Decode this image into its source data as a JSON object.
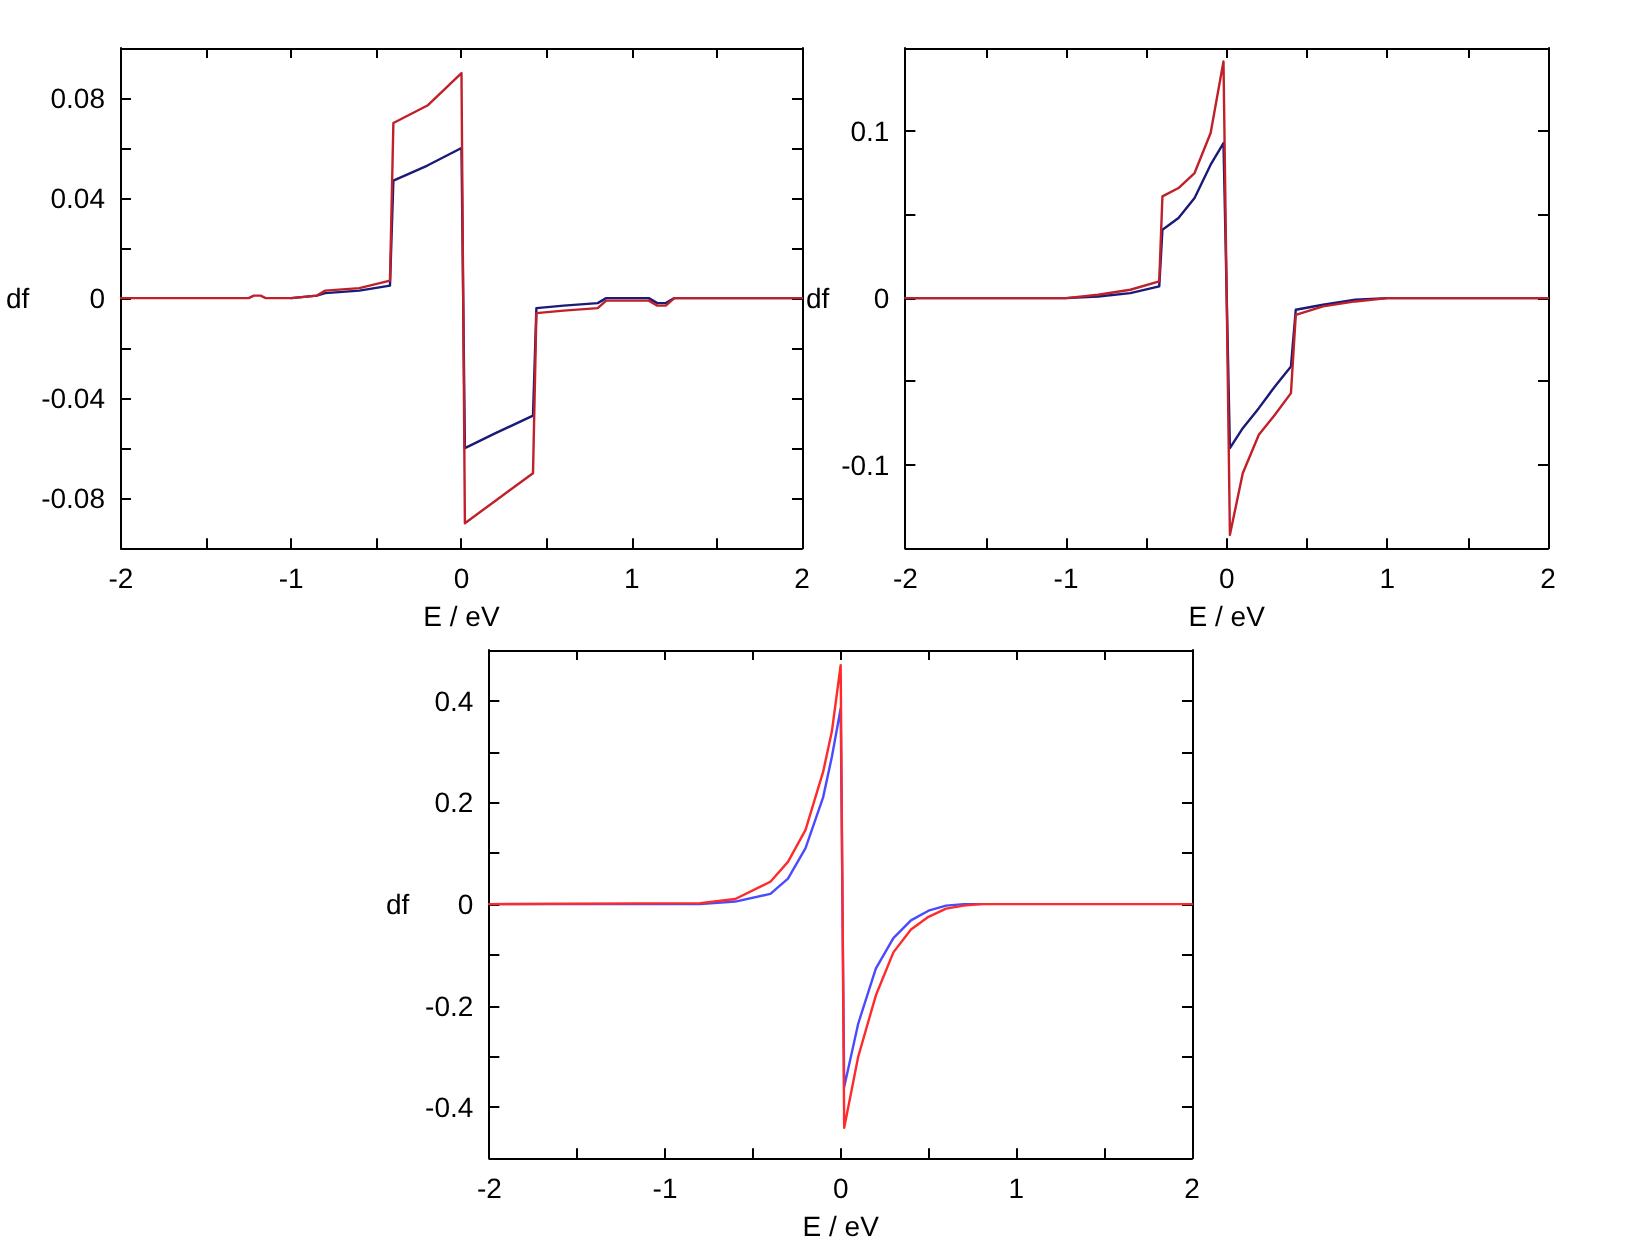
{
  "chart_data": [
    {
      "type": "line",
      "xlabel": "E / eV",
      "ylabel": "df",
      "xlim": [
        -2,
        2
      ],
      "ylim": [
        -0.1,
        0.1
      ],
      "marker": "none",
      "line_style": "solid",
      "grid": false,
      "xticks": [
        -2,
        {
          "value": -1.5,
          "label": null
        },
        -1,
        {
          "value": -0.5,
          "label": null
        },
        0,
        {
          "value": 0.5,
          "label": null
        },
        1,
        {
          "value": 1.5,
          "label": null
        },
        2
      ],
      "yticks": [
        {
          "value": -0.1,
          "label": null
        },
        -0.08,
        {
          "value": -0.06,
          "label": null
        },
        -0.04,
        {
          "value": -0.02,
          "label": null
        },
        0,
        {
          "value": 0.02,
          "label": null
        },
        0.04,
        {
          "value": 0.06,
          "label": null
        },
        0.08,
        {
          "value": 0.1,
          "label": null
        }
      ],
      "series": [
        {
          "color": "#1a1a78",
          "x": [
            -1.0,
            -0.85,
            -0.8,
            -0.6,
            -0.42,
            -0.4,
            -0.2,
            0,
            0.02,
            0.2,
            0.42,
            0.44,
            0.6,
            0.8,
            0.85,
            1.1,
            1.15,
            1.2,
            1.25,
            2
          ],
          "values": [
            0,
            0.001,
            0.002,
            0.003,
            0.005,
            0.047,
            0.053,
            0.06,
            -0.06,
            -0.054,
            -0.047,
            -0.004,
            -0.003,
            -0.002,
            0,
            0,
            -0.002,
            -0.002,
            0,
            0
          ]
        },
        {
          "color": "#c0202a",
          "x": [
            -2,
            -1.25,
            -1.22,
            -1.18,
            -1.15,
            -1.0,
            -0.85,
            -0.8,
            -0.6,
            -0.42,
            -0.4,
            -0.2,
            0,
            0.02,
            0.2,
            0.42,
            0.44,
            0.6,
            0.8,
            0.85,
            1.1,
            1.15,
            1.2,
            1.25,
            2
          ],
          "values": [
            0,
            0,
            0.001,
            0.001,
            0,
            0,
            0.001,
            0.003,
            0.004,
            0.007,
            0.07,
            0.077,
            0.09,
            -0.09,
            -0.081,
            -0.07,
            -0.006,
            -0.005,
            -0.004,
            -0.001,
            -0.001,
            -0.003,
            -0.003,
            0,
            0
          ]
        }
      ]
    },
    {
      "type": "line",
      "xlabel": "E / eV",
      "ylabel": "df",
      "xlim": [
        -2,
        2
      ],
      "ylim": [
        -0.15,
        0.15
      ],
      "marker": "none",
      "line_style": "solid",
      "grid": false,
      "xticks": [
        -2,
        {
          "value": -1.5,
          "label": null
        },
        -1,
        {
          "value": -0.5,
          "label": null
        },
        0,
        {
          "value": 0.5,
          "label": null
        },
        1,
        {
          "value": 1.5,
          "label": null
        },
        2
      ],
      "yticks": [
        {
          "value": -0.15,
          "label": null
        },
        -0.1,
        {
          "value": -0.05,
          "label": null
        },
        0,
        {
          "value": 0.05,
          "label": null
        },
        0.1,
        {
          "value": 0.15,
          "label": null
        }
      ],
      "series": [
        {
          "color": "#1a1a78",
          "x": [
            -2,
            -1,
            -0.8,
            -0.6,
            -0.42,
            -0.4,
            -0.3,
            -0.2,
            -0.1,
            -0.02,
            0.02,
            0.1,
            0.2,
            0.3,
            0.4,
            0.43,
            0.6,
            0.8,
            1,
            2
          ],
          "values": [
            0,
            0,
            0.001,
            0.003,
            0.007,
            0.041,
            0.048,
            0.06,
            0.08,
            0.093,
            -0.09,
            -0.078,
            -0.066,
            -0.053,
            -0.041,
            -0.007,
            -0.004,
            -0.001,
            0,
            0
          ]
        },
        {
          "color": "#c0202a",
          "x": [
            -2,
            -1,
            -0.8,
            -0.6,
            -0.42,
            -0.4,
            -0.3,
            -0.2,
            -0.1,
            -0.02,
            0.02,
            0.1,
            0.2,
            0.3,
            0.4,
            0.43,
            0.6,
            0.8,
            1,
            2
          ],
          "values": [
            0,
            0,
            0.002,
            0.005,
            0.01,
            0.061,
            0.066,
            0.075,
            0.099,
            0.142,
            -0.142,
            -0.105,
            -0.082,
            -0.07,
            -0.057,
            -0.01,
            -0.005,
            -0.002,
            0,
            0
          ]
        }
      ]
    },
    {
      "type": "line",
      "xlabel": "E / eV",
      "ylabel": "df",
      "xlim": [
        -2,
        2
      ],
      "ylim": [
        -0.5,
        0.5
      ],
      "marker": "none",
      "line_style": "solid",
      "grid": false,
      "xticks": [
        -2,
        {
          "value": -1.5,
          "label": null
        },
        -1,
        {
          "value": -0.5,
          "label": null
        },
        0,
        {
          "value": 0.5,
          "label": null
        },
        1,
        {
          "value": 1.5,
          "label": null
        },
        2
      ],
      "yticks": [
        {
          "value": -0.5,
          "label": null
        },
        -0.4,
        {
          "value": -0.3,
          "label": null
        },
        -0.2,
        {
          "value": -0.1,
          "label": null
        },
        0,
        {
          "value": 0.1,
          "label": null
        },
        0.2,
        {
          "value": 0.3,
          "label": null
        },
        0.4,
        {
          "value": 0.5,
          "label": null
        }
      ],
      "series": [
        {
          "color": "#4a4aff",
          "x": [
            -2,
            -0.8,
            -0.6,
            -0.4,
            -0.3,
            -0.2,
            -0.1,
            -0.05,
            0,
            0.02,
            0.1,
            0.2,
            0.3,
            0.4,
            0.5,
            0.6,
            0.7,
            0.8
          ],
          "values": [
            0,
            0,
            0.005,
            0.02,
            0.05,
            0.11,
            0.21,
            0.29,
            0.385,
            -0.36,
            -0.235,
            -0.127,
            -0.067,
            -0.032,
            -0.013,
            -0.003,
            0,
            0
          ]
        },
        {
          "color": "#ff2a2a",
          "x": [
            -2,
            -0.8,
            -0.6,
            -0.4,
            -0.3,
            -0.2,
            -0.1,
            -0.05,
            0,
            0.02,
            0.1,
            0.2,
            0.3,
            0.4,
            0.5,
            0.6,
            0.7,
            0.8,
            2
          ],
          "values": [
            0,
            0.002,
            0.01,
            0.044,
            0.083,
            0.146,
            0.26,
            0.34,
            0.47,
            -0.44,
            -0.3,
            -0.18,
            -0.095,
            -0.05,
            -0.025,
            -0.009,
            -0.003,
            0,
            0
          ]
        }
      ]
    }
  ]
}
